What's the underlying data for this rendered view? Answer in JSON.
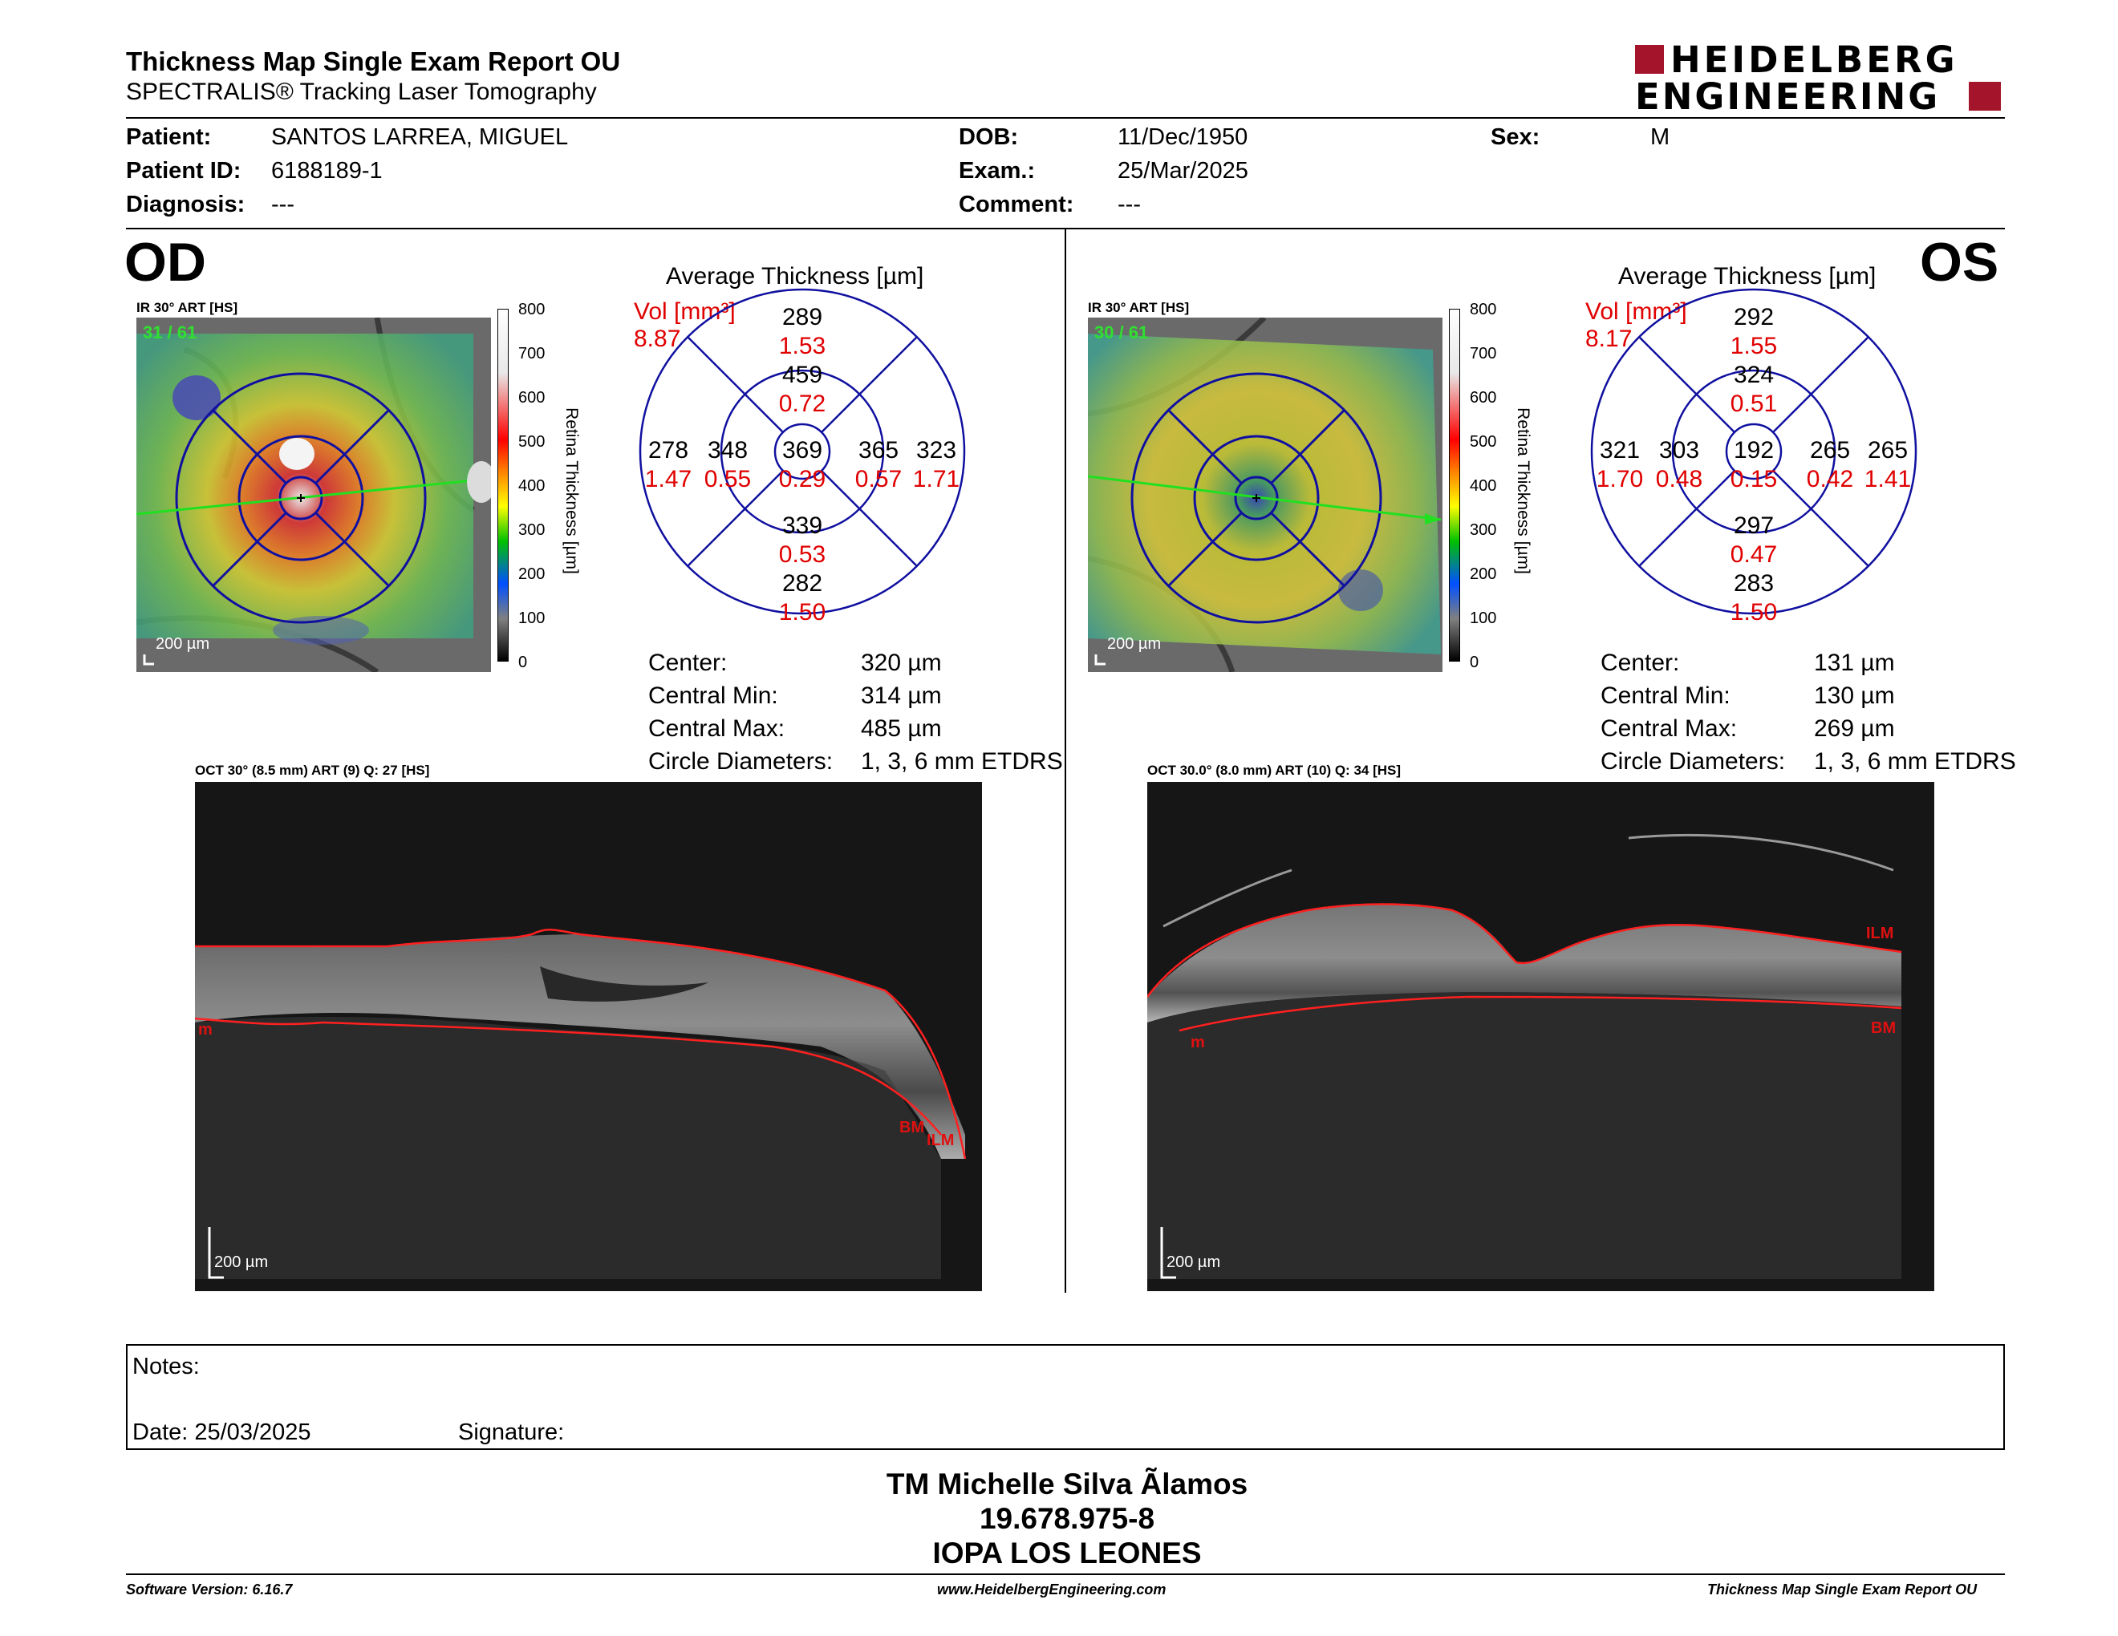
{
  "header": {
    "title": "Thickness Map Single Exam Report OU",
    "subtitle": "SPECTRALIS® Tracking Laser Tomography",
    "logo_line1": "HEIDELBERG",
    "logo_line2": "ENGINEERING"
  },
  "patient": {
    "patient_label": "Patient:",
    "patient_value": "SANTOS LARREA, MIGUEL",
    "id_label": "Patient ID:",
    "id_value": "6188189-1",
    "diagnosis_label": "Diagnosis:",
    "diagnosis_value": "---",
    "dob_label": "DOB:",
    "dob_value": "11/Dec/1950",
    "exam_label": "Exam.:",
    "exam_value": "25/Mar/2025",
    "comment_label": "Comment:",
    "comment_value": "---",
    "sex_label": "Sex:",
    "sex_value": "M"
  },
  "colorbar": {
    "ticks": [
      "800",
      "700",
      "600",
      "500",
      "400",
      "300",
      "200",
      "100",
      "0"
    ],
    "label": "Retina Thickness [µm]"
  },
  "od": {
    "eye": "OD",
    "map_caption": "IR 30° ART [HS]",
    "quality": "31 / 61",
    "scale": "200 µm",
    "avg_title": "Average Thickness [µm]",
    "vol_label": "Vol [mm³]",
    "vol_value": "8.87",
    "sectors": {
      "outer_sup": {
        "t": "289",
        "v": "1.53"
      },
      "inner_sup": {
        "t": "459",
        "v": "0.72"
      },
      "outer_left": {
        "t": "278",
        "v": "1.47"
      },
      "inner_left": {
        "t": "348",
        "v": "0.55"
      },
      "center": {
        "t": "369",
        "v": "0.29"
      },
      "inner_right": {
        "t": "365",
        "v": "0.57"
      },
      "outer_right": {
        "t": "323",
        "v": "1.71"
      },
      "inner_inf": {
        "t": "339",
        "v": "0.53"
      },
      "outer_inf": {
        "t": "282",
        "v": "1.50"
      }
    },
    "stats": [
      {
        "label": "Center:",
        "value": "320 µm"
      },
      {
        "label": "Central Min:",
        "value": "314 µm"
      },
      {
        "label": "Central Max:",
        "value": "485 µm"
      },
      {
        "label": "Circle Diameters:",
        "value": "1, 3, 6 mm ETDRS"
      }
    ],
    "oct_caption": "OCT 30° (8.5 mm) ART (9) Q: 27 [HS]",
    "oct_scale": "200 µm",
    "oct_labels": {
      "a": "m",
      "b": "BM",
      "c": "ILM"
    }
  },
  "os": {
    "eye": "OS",
    "map_caption": "IR 30° ART [HS]",
    "quality": "30 / 61",
    "scale": "200 µm",
    "avg_title": "Average Thickness [µm]",
    "vol_label": "Vol [mm³]",
    "vol_value": "8.17",
    "sectors": {
      "outer_sup": {
        "t": "292",
        "v": "1.55"
      },
      "inner_sup": {
        "t": "324",
        "v": "0.51"
      },
      "outer_left": {
        "t": "321",
        "v": "1.70"
      },
      "inner_left": {
        "t": "303",
        "v": "0.48"
      },
      "center": {
        "t": "192",
        "v": "0.15"
      },
      "inner_right": {
        "t": "265",
        "v": "0.42"
      },
      "outer_right": {
        "t": "265",
        "v": "1.41"
      },
      "inner_inf": {
        "t": "297",
        "v": "0.47"
      },
      "outer_inf": {
        "t": "283",
        "v": "1.50"
      }
    },
    "stats": [
      {
        "label": "Center:",
        "value": "131 µm"
      },
      {
        "label": "Central Min:",
        "value": "130 µm"
      },
      {
        "label": "Central Max:",
        "value": "269 µm"
      },
      {
        "label": "Circle Diameters:",
        "value": "1, 3, 6 mm ETDRS"
      }
    ],
    "oct_caption": "OCT 30.0° (8.0 mm) ART (10) Q: 34 [HS]",
    "oct_scale": "200 µm",
    "oct_labels": {
      "a": "ILM",
      "b": "m",
      "c": "BM"
    }
  },
  "notes": {
    "notes_label": "Notes:",
    "date_label": "Date: 25/03/2025",
    "signature_label": "Signature:"
  },
  "signatory": {
    "name": "TM Michelle Silva Ãlamos",
    "rut": "19.678.975-8",
    "org": "IOPA LOS LEONES"
  },
  "footer": {
    "version": "Software Version: 6.16.7",
    "url": "www.HeidelbergEngineering.com",
    "report": "Thickness Map Single Exam Report OU"
  },
  "colors": {
    "accent_red": "#e00000",
    "logo_red": "#a4142a",
    "etdrs_blue": "#1010a0"
  }
}
